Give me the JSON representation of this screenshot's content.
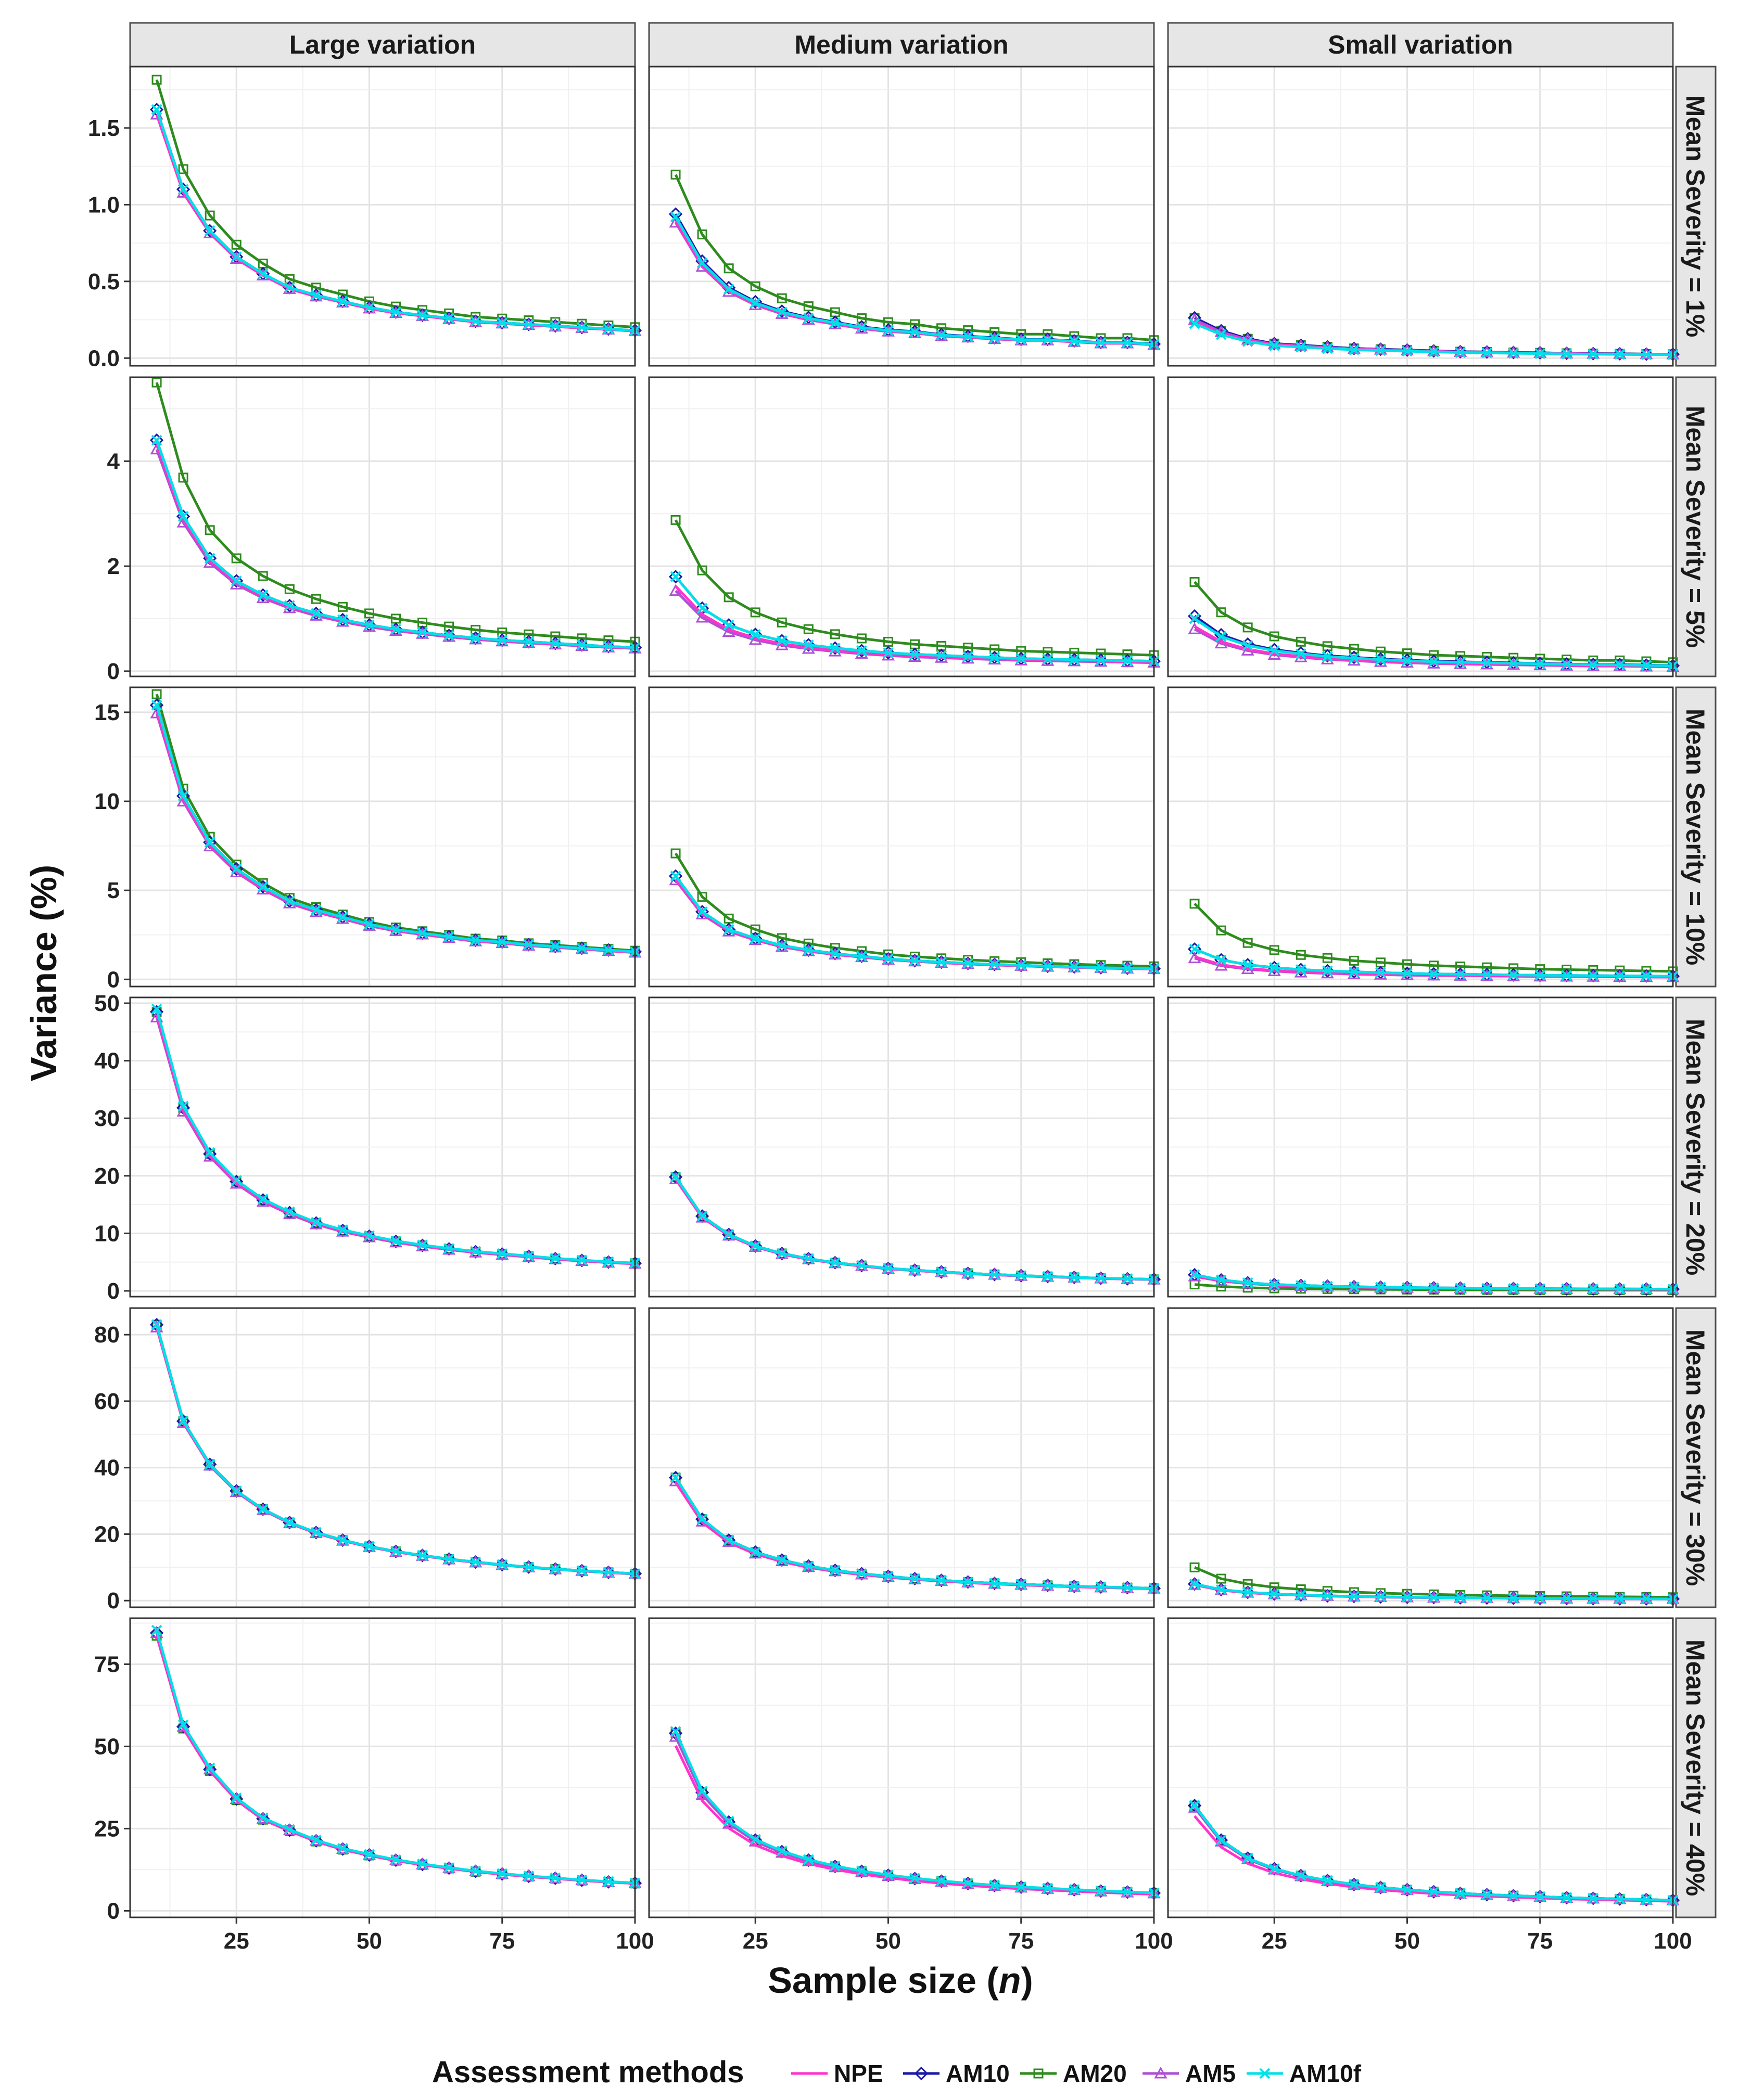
{
  "chart_data": {
    "type": "line",
    "xlabel": "Sample size (n)",
    "xlabel_main": "Sample size (",
    "xlabel_var": "n",
    "xlabel_close": ")",
    "ylabel": "Variance (%)",
    "x": [
      10,
      15,
      20,
      25,
      30,
      35,
      40,
      45,
      50,
      55,
      60,
      65,
      70,
      75,
      80,
      85,
      90,
      95,
      100
    ],
    "xlim": [
      5,
      100
    ],
    "x_ticks": [
      25,
      50,
      75,
      100
    ],
    "col_labels": [
      "Large variation",
      "Medium variation",
      "Small  variation"
    ],
    "row_labels": [
      "Mean Severity = 1%",
      "Mean Severity = 5%",
      "Mean Severity = 10%",
      "Mean Severity = 20%",
      "Mean Severity = 30%",
      "Mean Severity = 40%"
    ],
    "legend": {
      "title": "Assessment methods",
      "position": "bottom",
      "items": [
        {
          "name": "NPE",
          "color": "#ff33cc",
          "marker": "none"
        },
        {
          "name": "AM10",
          "color": "#1a1aa6",
          "marker": "diamond"
        },
        {
          "name": "AM20",
          "color": "#2e8b1e",
          "marker": "square"
        },
        {
          "name": "AM5",
          "color": "#b04fd6",
          "marker": "triangle"
        },
        {
          "name": "AM10f",
          "color": "#00e0e8",
          "marker": "x"
        }
      ]
    },
    "panels": [
      {
        "row": 0,
        "col": 0,
        "y_ticks": [
          "0.0",
          "0.5",
          "1.0",
          "1.5"
        ],
        "ylim": [
          -0.05,
          1.9
        ],
        "base": [
          1.62,
          1.1,
          0.83,
          0.66,
          0.55,
          0.46,
          0.41,
          0.37,
          0.33,
          0.3,
          0.28,
          0.26,
          0.24,
          0.23,
          0.22,
          0.21,
          0.2,
          0.19,
          0.18
        ],
        "factors": {
          "NPE": 0.98,
          "AM10": 1.0,
          "AM20": 1.12,
          "AM5": 0.98,
          "AM10f": 1.0
        }
      },
      {
        "row": 0,
        "col": 1,
        "y_ticks": [
          "0.0",
          "0.5",
          "1.0",
          "1.5"
        ],
        "ylim": [
          -0.05,
          1.9
        ],
        "base": [
          0.92,
          0.62,
          0.45,
          0.36,
          0.3,
          0.26,
          0.23,
          0.2,
          0.18,
          0.17,
          0.15,
          0.14,
          0.13,
          0.12,
          0.12,
          0.11,
          0.1,
          0.1,
          0.09
        ],
        "factors": {
          "NPE": 0.97,
          "AM10": 1.02,
          "AM20": 1.3,
          "AM5": 0.96,
          "AM10f": 1.0
        }
      },
      {
        "row": 0,
        "col": 2,
        "y_ticks": [
          "0.0",
          "0.5",
          "1.0",
          "1.5"
        ],
        "ylim": [
          -0.05,
          1.9
        ],
        "base": [
          0.25,
          0.17,
          0.12,
          0.09,
          0.08,
          0.07,
          0.06,
          0.055,
          0.05,
          0.045,
          0.04,
          0.038,
          0.035,
          0.033,
          0.03,
          0.028,
          0.027,
          0.025,
          0.024
        ],
        "factors": {
          "NPE": 0.95,
          "AM10": 1.05,
          "AM20": 1.05,
          "AM5": 1.0,
          "AM10f": 0.9
        }
      },
      {
        "row": 1,
        "col": 0,
        "y_ticks": [
          "0",
          "2",
          "4"
        ],
        "ylim": [
          -0.1,
          5.6
        ],
        "base": [
          4.4,
          2.95,
          2.15,
          1.72,
          1.45,
          1.25,
          1.1,
          0.98,
          0.88,
          0.8,
          0.74,
          0.68,
          0.63,
          0.59,
          0.56,
          0.53,
          0.5,
          0.47,
          0.45
        ],
        "factors": {
          "NPE": 0.98,
          "AM10": 1.0,
          "AM20": 1.25,
          "AM5": 0.96,
          "AM10f": 1.0
        }
      },
      {
        "row": 1,
        "col": 1,
        "y_ticks": [
          "0",
          "2",
          "4"
        ],
        "ylim": [
          -0.1,
          5.6
        ],
        "base": [
          1.8,
          1.2,
          0.88,
          0.7,
          0.58,
          0.5,
          0.44,
          0.39,
          0.35,
          0.32,
          0.3,
          0.28,
          0.26,
          0.24,
          0.23,
          0.22,
          0.21,
          0.2,
          0.19
        ],
        "factors": {
          "NPE": 0.9,
          "AM10": 1.0,
          "AM20": 1.6,
          "AM5": 0.85,
          "AM10f": 1.0
        }
      },
      {
        "row": 1,
        "col": 2,
        "y_ticks": [
          "0",
          "2",
          "4"
        ],
        "ylim": [
          -0.1,
          5.6
        ],
        "base": [
          1.0,
          0.66,
          0.49,
          0.39,
          0.33,
          0.28,
          0.25,
          0.22,
          0.2,
          0.18,
          0.17,
          0.16,
          0.15,
          0.14,
          0.13,
          0.12,
          0.12,
          0.11,
          0.1
        ],
        "factors": {
          "NPE": 0.85,
          "AM10": 1.05,
          "AM20": 1.7,
          "AM5": 0.8,
          "AM10f": 1.0
        }
      },
      {
        "row": 2,
        "col": 0,
        "y_ticks": [
          "0",
          "5",
          "10",
          "15"
        ],
        "ylim": [
          -0.4,
          16.4
        ],
        "base": [
          15.4,
          10.3,
          7.7,
          6.2,
          5.2,
          4.4,
          3.9,
          3.5,
          3.1,
          2.8,
          2.6,
          2.4,
          2.2,
          2.1,
          1.95,
          1.85,
          1.75,
          1.65,
          1.55
        ],
        "factors": {
          "NPE": 0.98,
          "AM10": 1.0,
          "AM20": 1.04,
          "AM5": 0.97,
          "AM10f": 1.0
        }
      },
      {
        "row": 2,
        "col": 1,
        "y_ticks": [
          "0",
          "5",
          "10",
          "15"
        ],
        "ylim": [
          -0.4,
          16.4
        ],
        "base": [
          5.8,
          3.8,
          2.8,
          2.3,
          1.9,
          1.65,
          1.45,
          1.3,
          1.15,
          1.05,
          0.97,
          0.9,
          0.84,
          0.79,
          0.74,
          0.7,
          0.66,
          0.63,
          0.6
        ],
        "factors": {
          "NPE": 0.97,
          "AM10": 1.0,
          "AM20": 1.22,
          "AM5": 0.96,
          "AM10f": 1.0
        }
      },
      {
        "row": 2,
        "col": 2,
        "y_ticks": [
          "0",
          "5",
          "10",
          "15"
        ],
        "ylim": [
          -0.4,
          16.4
        ],
        "base": [
          1.7,
          1.1,
          0.82,
          0.66,
          0.55,
          0.48,
          0.42,
          0.38,
          0.34,
          0.31,
          0.29,
          0.27,
          0.25,
          0.23,
          0.22,
          0.21,
          0.2,
          0.19,
          0.18
        ],
        "factors": {
          "NPE": 0.75,
          "AM10": 1.0,
          "AM20": 2.5,
          "AM5": 0.7,
          "AM10f": 1.0
        }
      },
      {
        "row": 3,
        "col": 0,
        "y_ticks": [
          "0",
          "10",
          "20",
          "30",
          "40",
          "50"
        ],
        "ylim": [
          -1,
          51
        ],
        "base": [
          48.5,
          31.8,
          23.8,
          19,
          15.8,
          13.6,
          11.8,
          10.5,
          9.5,
          8.6,
          7.9,
          7.3,
          6.8,
          6.4,
          6,
          5.6,
          5.3,
          5.0,
          4.8
        ],
        "factors": {
          "NPE": 0.99,
          "AM10": 1.0,
          "AM20": 1.0,
          "AM5": 0.98,
          "AM10f": 1.01
        }
      },
      {
        "row": 3,
        "col": 1,
        "y_ticks": [
          "0",
          "10",
          "20",
          "30",
          "40",
          "50"
        ],
        "ylim": [
          -1,
          51
        ],
        "base": [
          19.8,
          13.0,
          9.8,
          7.8,
          6.5,
          5.6,
          4.9,
          4.4,
          3.9,
          3.6,
          3.3,
          3.05,
          2.85,
          2.65,
          2.5,
          2.35,
          2.2,
          2.1,
          2.0
        ],
        "factors": {
          "NPE": 0.98,
          "AM10": 1.0,
          "AM20": 1.0,
          "AM5": 0.98,
          "AM10f": 1.0
        }
      },
      {
        "row": 3,
        "col": 2,
        "y_ticks": [
          "0",
          "10",
          "20",
          "30",
          "40",
          "50"
        ],
        "ylim": [
          -1,
          51
        ],
        "base": [
          2.8,
          1.9,
          1.4,
          1.1,
          0.95,
          0.82,
          0.72,
          0.64,
          0.58,
          0.53,
          0.49,
          0.45,
          0.42,
          0.4,
          0.37,
          0.35,
          0.33,
          0.32,
          0.3
        ],
        "factors": {
          "NPE": 0.9,
          "AM10": 1.0,
          "AM20": 0.4,
          "AM5": 0.9,
          "AM10f": 1.0
        }
      },
      {
        "row": 4,
        "col": 0,
        "y_ticks": [
          "0",
          "20",
          "40",
          "60",
          "80"
        ],
        "ylim": [
          -2,
          88
        ],
        "base": [
          83,
          54,
          41,
          33,
          27.5,
          23.5,
          20.5,
          18.2,
          16.3,
          14.8,
          13.6,
          12.5,
          11.6,
          10.8,
          10.1,
          9.5,
          9.0,
          8.5,
          8.1
        ],
        "factors": {
          "NPE": 0.99,
          "AM10": 1.0,
          "AM20": 1.0,
          "AM5": 0.99,
          "AM10f": 1.0
        }
      },
      {
        "row": 4,
        "col": 1,
        "y_ticks": [
          "0",
          "20",
          "40",
          "60",
          "80"
        ],
        "ylim": [
          -2,
          88
        ],
        "base": [
          37,
          24.5,
          18.2,
          14.6,
          12.2,
          10.4,
          9.1,
          8.1,
          7.3,
          6.6,
          6.1,
          5.6,
          5.2,
          4.9,
          4.6,
          4.3,
          4.1,
          3.9,
          3.7
        ],
        "factors": {
          "NPE": 0.96,
          "AM10": 1.0,
          "AM20": 1.0,
          "AM5": 0.97,
          "AM10f": 1.0
        }
      },
      {
        "row": 4,
        "col": 2,
        "y_ticks": [
          "0",
          "20",
          "40",
          "60",
          "80"
        ],
        "ylim": [
          -2,
          88
        ],
        "base": [
          5.0,
          3.3,
          2.5,
          2.0,
          1.7,
          1.45,
          1.27,
          1.13,
          1.02,
          0.93,
          0.85,
          0.79,
          0.73,
          0.68,
          0.64,
          0.6,
          0.57,
          0.54,
          0.51
        ],
        "factors": {
          "NPE": 0.95,
          "AM10": 1.0,
          "AM20": 2.0,
          "AM5": 0.95,
          "AM10f": 1.0
        }
      },
      {
        "row": 5,
        "col": 0,
        "y_ticks": [
          "0",
          "25",
          "50",
          "75"
        ],
        "ylim": [
          -2,
          89
        ],
        "base": [
          84.5,
          56,
          43,
          34,
          28,
          24.5,
          21.3,
          18.8,
          17,
          15.4,
          14.1,
          13,
          12,
          11.2,
          10.5,
          9.9,
          9.3,
          8.8,
          8.4
        ],
        "factors": {
          "NPE": 0.99,
          "AM10": 1.0,
          "AM20": 0.99,
          "AM5": 1.0,
          "AM10f": 1.01
        }
      },
      {
        "row": 5,
        "col": 1,
        "y_ticks": [
          "0",
          "25",
          "50",
          "75"
        ],
        "ylim": [
          -2,
          89
        ],
        "base": [
          54,
          36,
          27,
          21.5,
          18,
          15.4,
          13.5,
          12,
          10.8,
          9.8,
          9.0,
          8.3,
          7.7,
          7.2,
          6.8,
          6.4,
          6.0,
          5.7,
          5.4
        ],
        "factors": {
          "NPE": 0.93,
          "AM10": 1.0,
          "AM20": 1.0,
          "AM5": 0.98,
          "AM10f": 1.01
        }
      },
      {
        "row": 5,
        "col": 2,
        "y_ticks": [
          "0",
          "25",
          "50",
          "75"
        ],
        "ylim": [
          -2,
          89
        ],
        "base": [
          32,
          21.5,
          16,
          12.8,
          10.7,
          9.2,
          8.0,
          7.1,
          6.4,
          5.8,
          5.3,
          4.9,
          4.6,
          4.3,
          4.0,
          3.8,
          3.6,
          3.4,
          3.2
        ],
        "factors": {
          "NPE": 0.9,
          "AM10": 1.0,
          "AM20": 1.0,
          "AM5": 0.98,
          "AM10f": 1.0
        }
      }
    ]
  }
}
